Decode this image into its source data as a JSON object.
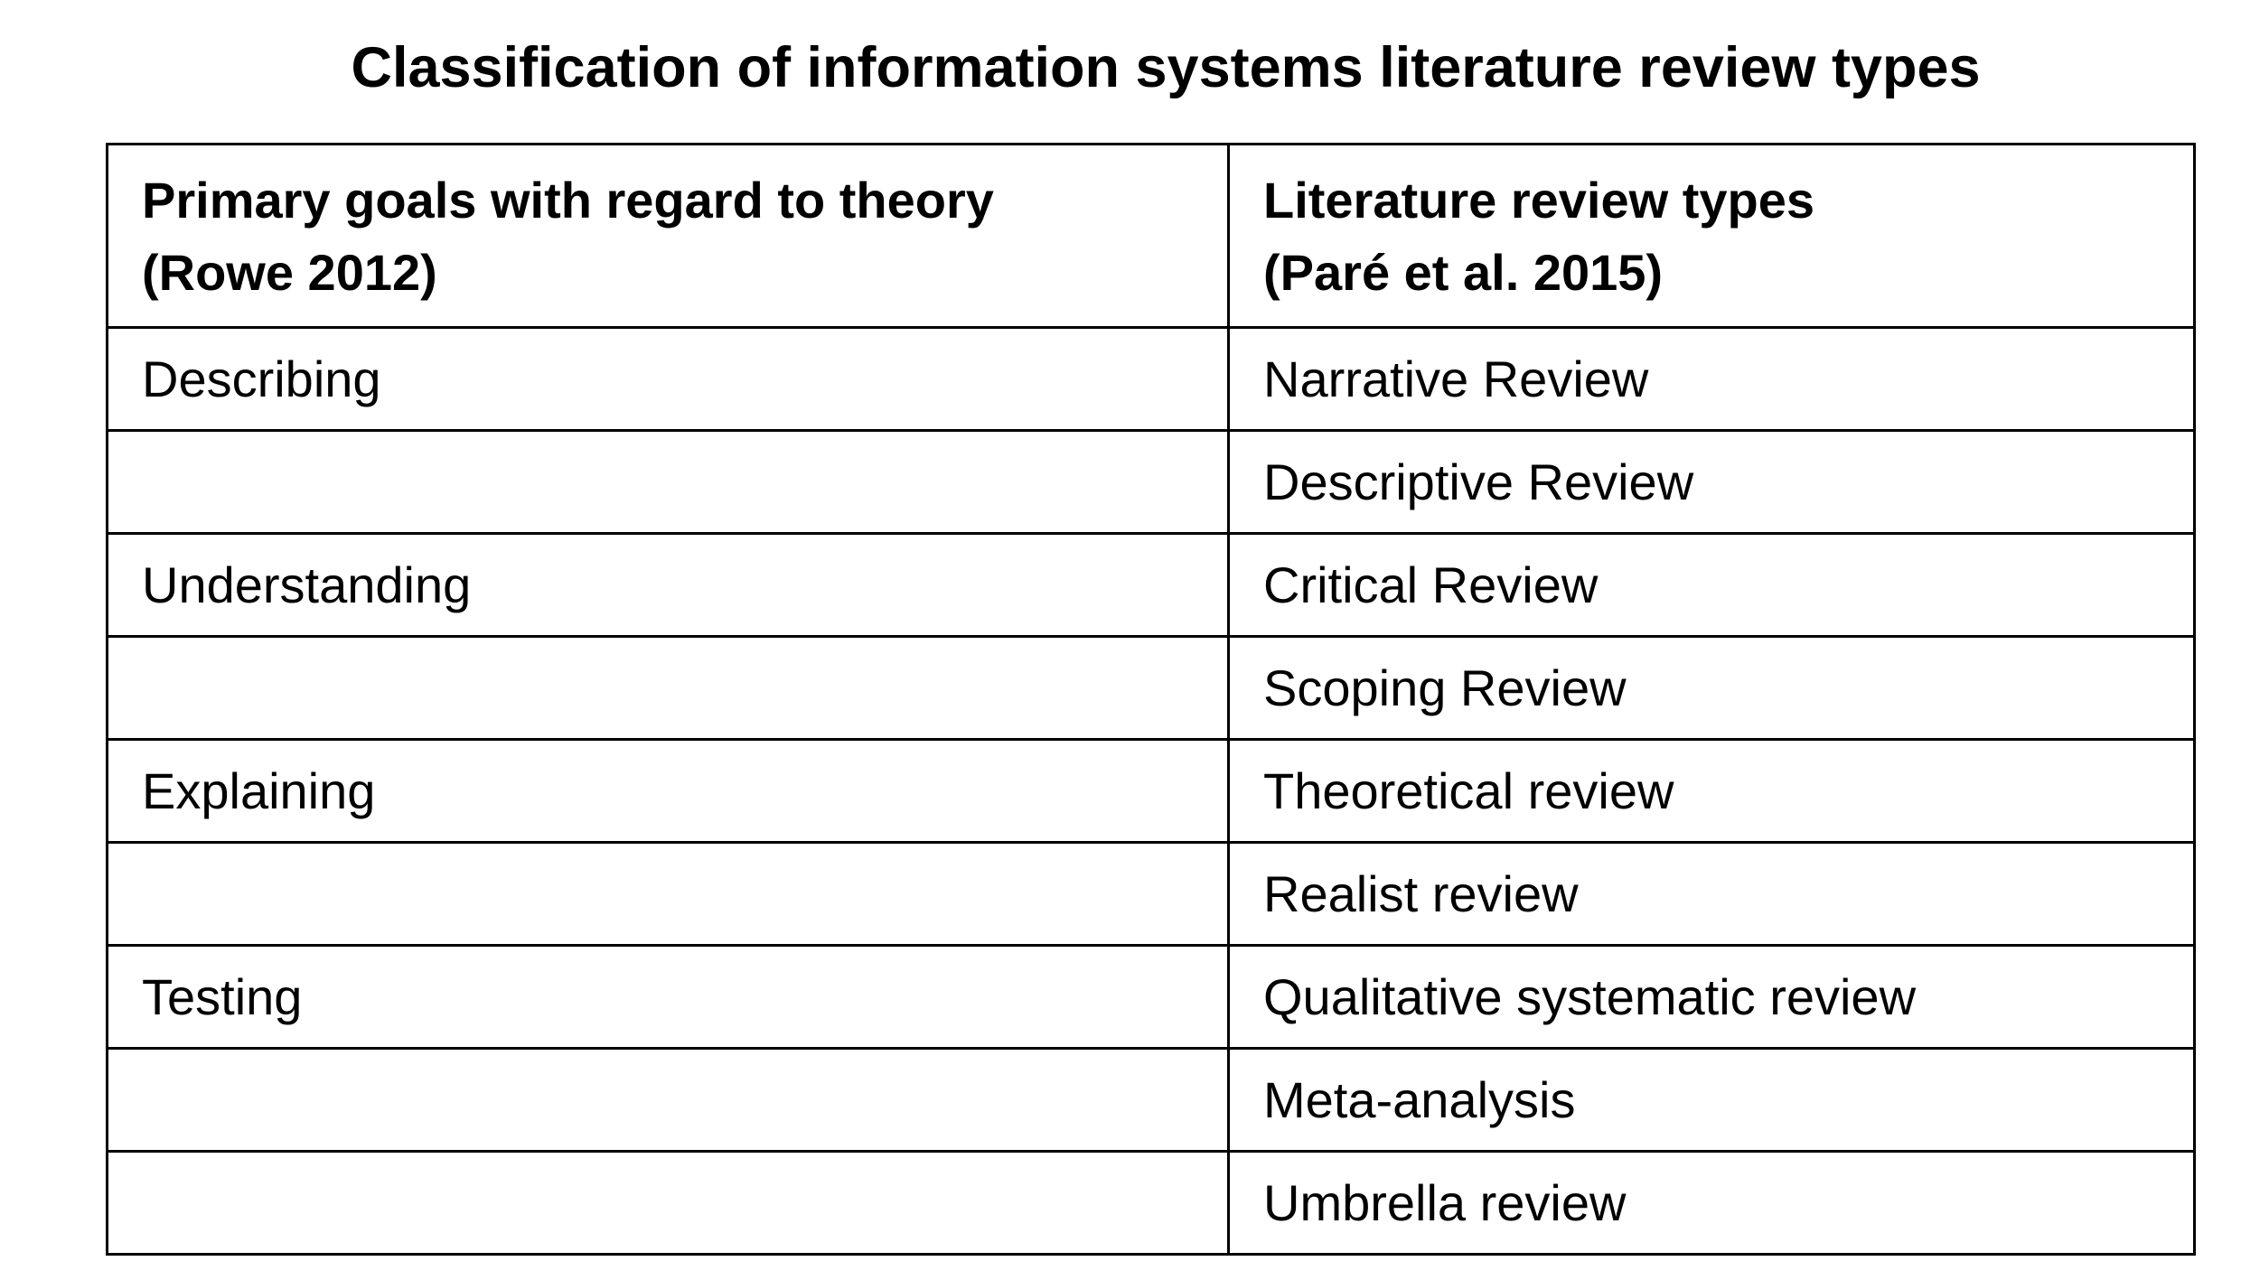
{
  "title": "Classification of information systems literature review types",
  "table": {
    "headers": [
      {
        "line1": "Primary goals with regard to theory",
        "line2": "(Rowe 2012)"
      },
      {
        "line1": "Literature review types",
        "line2": "(Paré et al. 2015)"
      }
    ],
    "rows": [
      [
        "Describing",
        "Narrative Review"
      ],
      [
        "",
        "Descriptive Review"
      ],
      [
        "Understanding",
        "Critical Review"
      ],
      [
        "",
        "Scoping Review"
      ],
      [
        "Explaining",
        "Theoretical review"
      ],
      [
        "",
        "Realist review"
      ],
      [
        "Testing",
        "Qualitative systematic review"
      ],
      [
        "",
        "Meta-analysis"
      ],
      [
        "",
        "Umbrella review"
      ]
    ]
  }
}
